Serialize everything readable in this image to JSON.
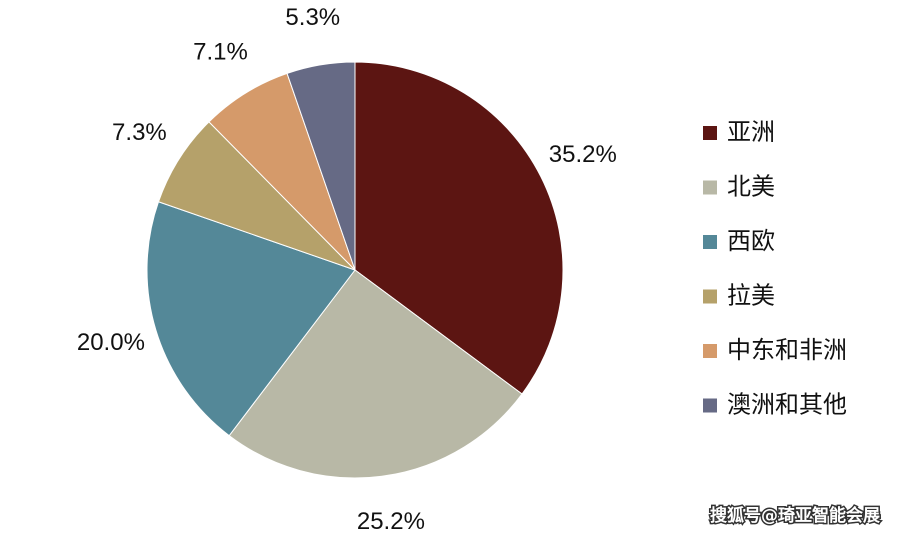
{
  "chart_data": {
    "type": "pie",
    "categories": [
      "亚洲",
      "北美",
      "西欧",
      "拉美",
      "中东和非洲",
      "澳洲和其他"
    ],
    "values": [
      35.2,
      25.2,
      20.0,
      7.3,
      7.1,
      5.3
    ],
    "value_labels": [
      "35.2%",
      "25.2%",
      "20.0%",
      "7.3%",
      "7.1%",
      "5.3%"
    ],
    "colors": [
      "#5c1512",
      "#b8b8a6",
      "#548898",
      "#b5a16a",
      "#d59a6a",
      "#666a85"
    ],
    "legend": "right"
  },
  "watermark": "搜狐号@琦亚智能会展"
}
